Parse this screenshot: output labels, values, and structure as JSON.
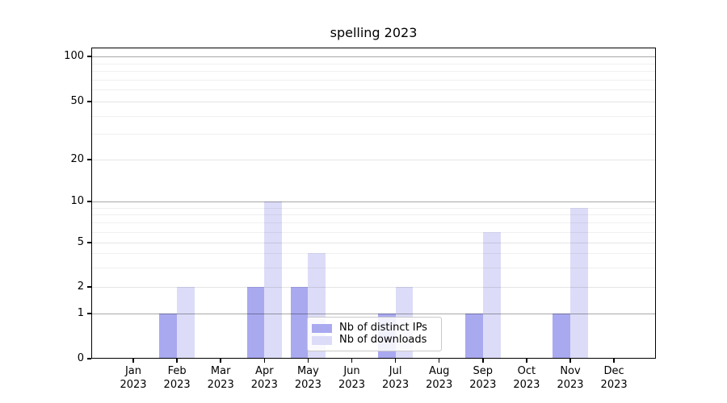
{
  "title": "spelling 2023",
  "accent_colors": {
    "distinct_ips_bar": "#a9a9f0",
    "downloads_bar": "#dcdcf8",
    "gridline_major": "#a8a8a8",
    "gridline_minor": "#ececec",
    "axis": "#000000"
  },
  "legend": {
    "position": "lower center",
    "items": [
      {
        "label": "Nb of distinct IPs",
        "color": "#a9a9f0"
      },
      {
        "label": "Nb of downloads",
        "color": "#dcdcf8"
      }
    ]
  },
  "chart_data": {
    "type": "bar",
    "title": "spelling 2023",
    "categories": [
      "Jan",
      "Feb",
      "Mar",
      "Apr",
      "May",
      "Jun",
      "Jul",
      "Aug",
      "Sep",
      "Oct",
      "Nov",
      "Dec"
    ],
    "category_year": "2023",
    "series": [
      {
        "name": "Nb of distinct IPs",
        "color": "#a9a9f0",
        "values": [
          0,
          1,
          0,
          2,
          2,
          0,
          1,
          0,
          1,
          0,
          1,
          0
        ]
      },
      {
        "name": "Nb of downloads",
        "color": "#dcdcf8",
        "values": [
          0,
          2,
          0,
          10,
          4,
          0,
          2,
          0,
          6,
          0,
          9,
          0
        ]
      }
    ],
    "xlabel": "",
    "ylabel": "",
    "y_axis": {
      "scale": "symlog",
      "tick_labels": [
        0,
        1,
        2,
        5,
        10,
        20,
        50,
        100
      ],
      "minor_ticks": [
        3,
        4,
        6,
        7,
        8,
        9,
        30,
        40,
        60,
        70,
        80,
        90
      ],
      "mid_ticks": [
        2,
        5,
        20,
        50
      ],
      "major_grid_ticks": [
        1,
        10,
        100
      ],
      "ylim": [
        0,
        115
      ]
    },
    "grid": true,
    "legend_position": "lower center"
  }
}
